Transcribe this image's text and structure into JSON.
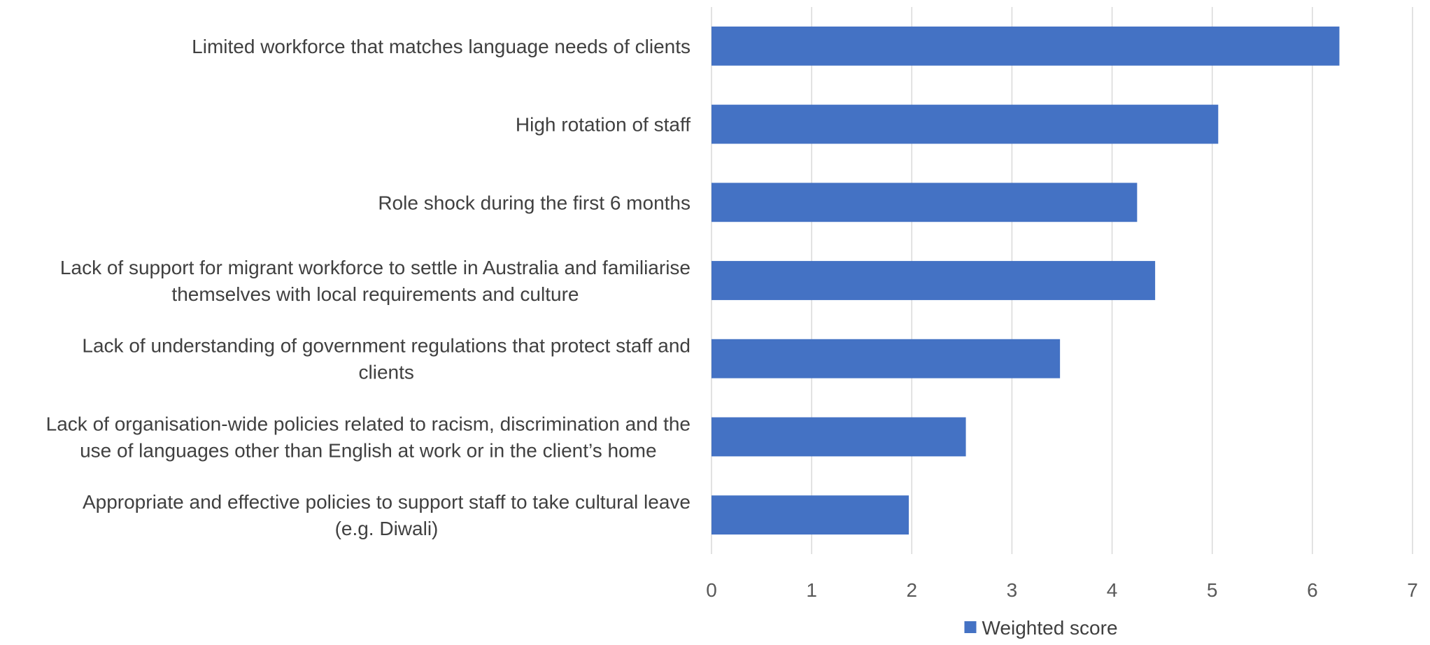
{
  "chart_data": {
    "type": "bar",
    "orientation": "horizontal",
    "categories": [
      [
        "Limited workforce that matches language needs of clients"
      ],
      [
        "High rotation of staff"
      ],
      [
        "Role shock during the first 6 months"
      ],
      [
        "Lack of support for migrant workforce to settle in Australia and familiarise",
        "themselves with local requirements and culture"
      ],
      [
        "Lack of understanding of government regulations that protect staff and",
        "clients"
      ],
      [
        "Lack of organisation-wide policies related to racism, discrimination and the",
        "use of languages other than English at work or in the client’s home"
      ],
      [
        "Appropriate and effective policies to support staff to take cultural leave",
        "(e.g. Diwali)"
      ]
    ],
    "series": [
      {
        "name": "Weighted score",
        "values": [
          6.27,
          5.06,
          4.25,
          4.43,
          3.48,
          2.54,
          1.97
        ],
        "color": "#4472C4"
      }
    ],
    "xlim": [
      0,
      7
    ],
    "xticks": [
      "0",
      "1",
      "2",
      "3",
      "4",
      "5",
      "6",
      "7"
    ],
    "grid": true,
    "legend": "bottom-center",
    "title": "",
    "xlabel": "",
    "ylabel": ""
  }
}
